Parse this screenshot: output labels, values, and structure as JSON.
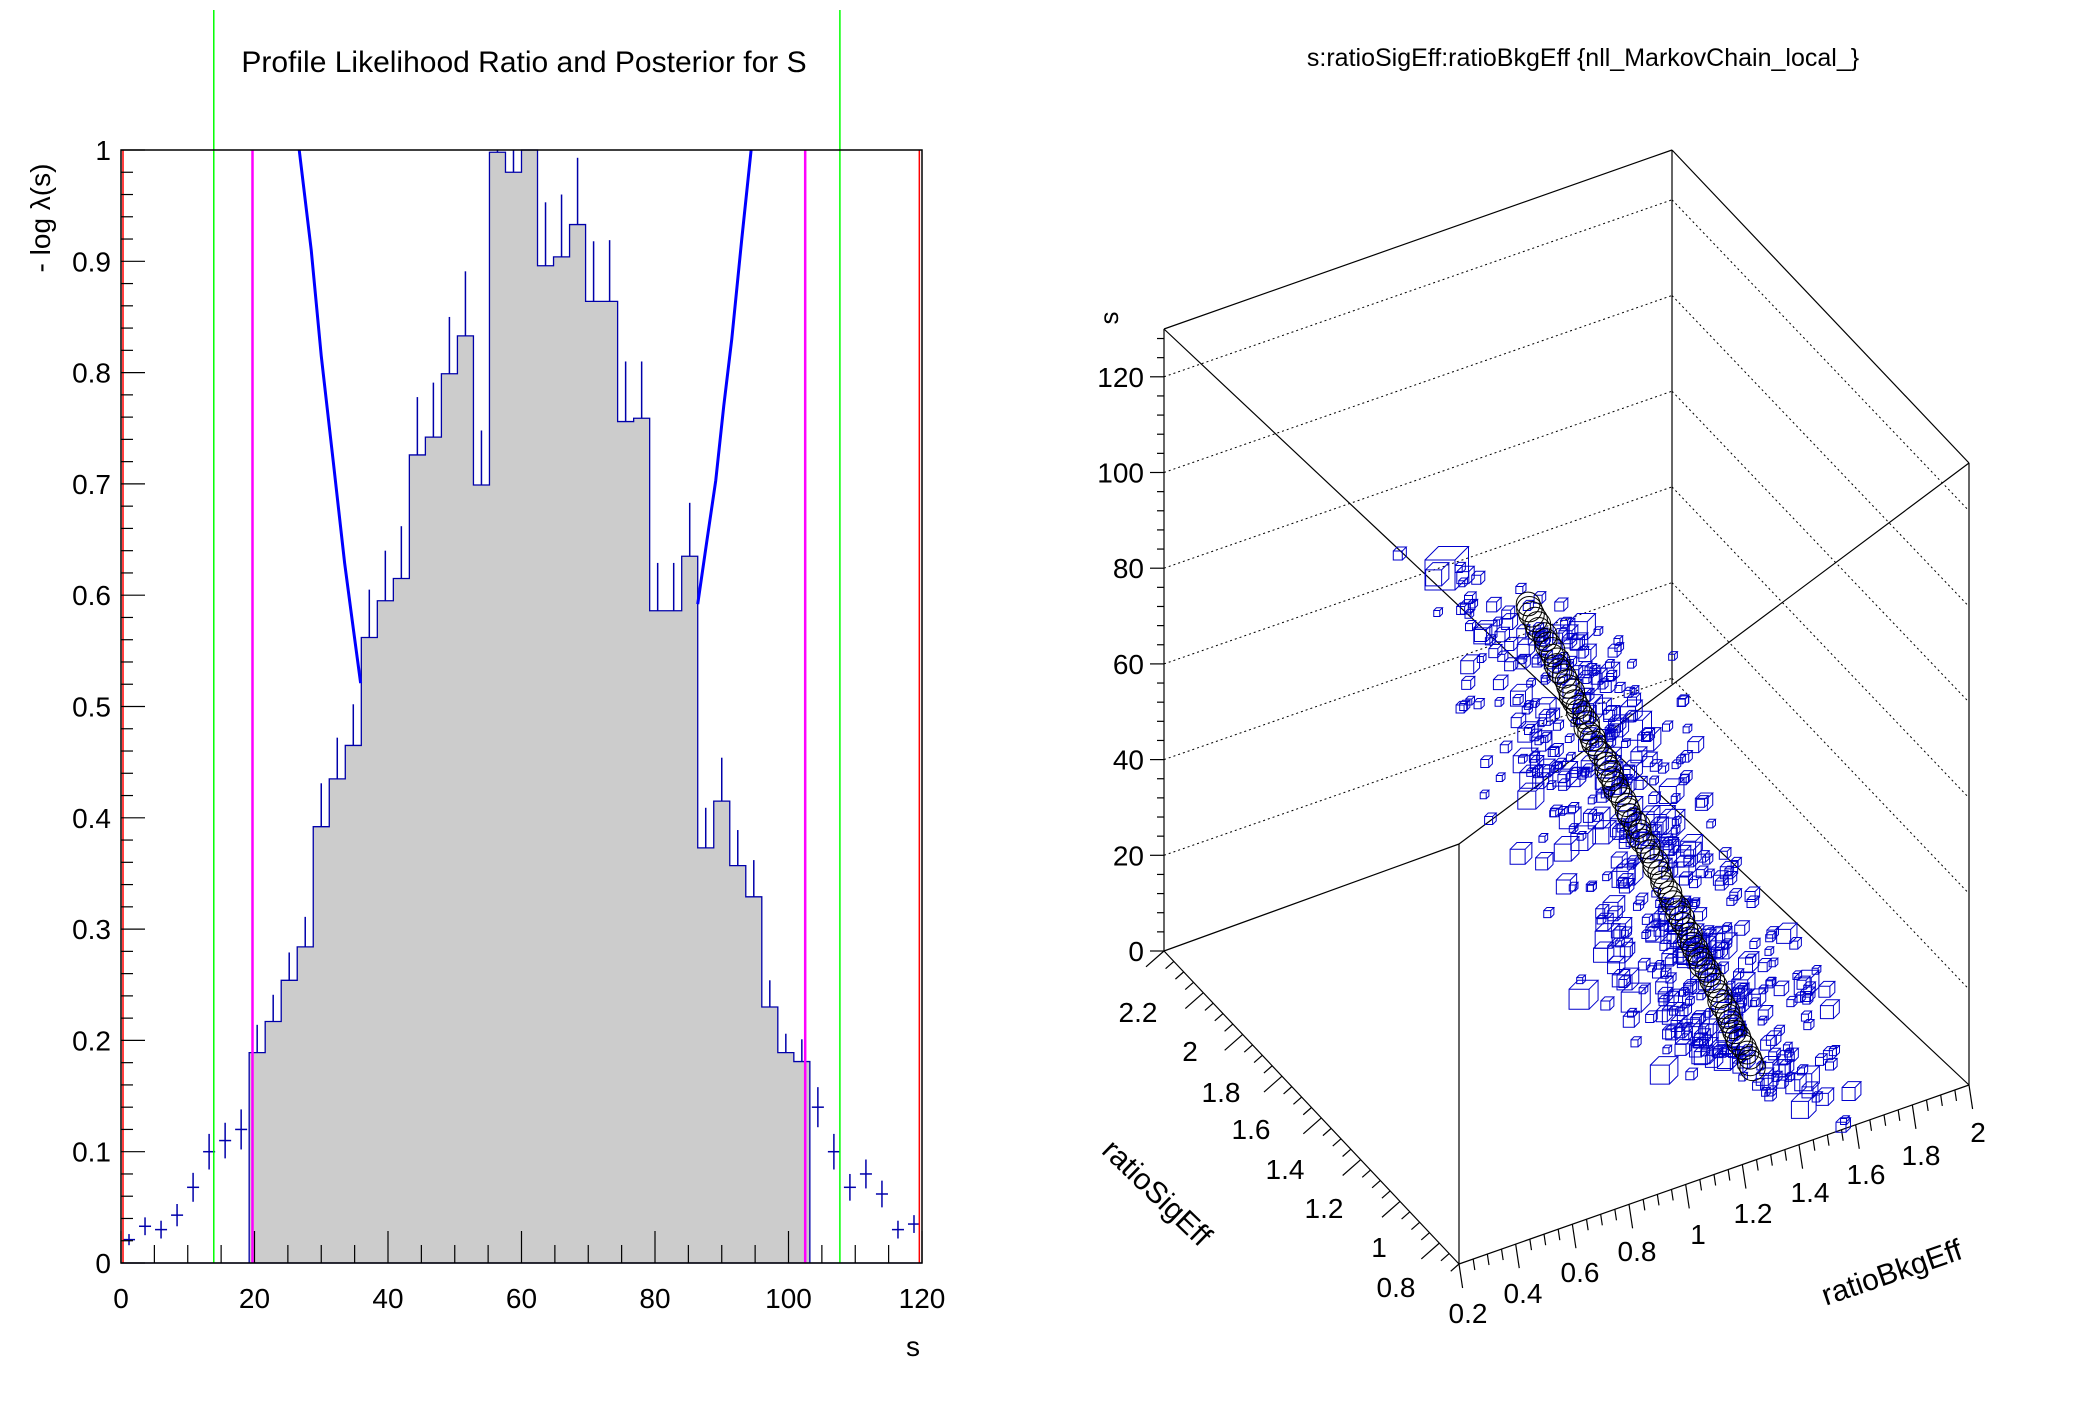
{
  "chart_data": [
    {
      "type": "bar",
      "title": "Profile Likelihood Ratio and Posterior for S",
      "xlabel": "s",
      "ylabel": "- log λ(s)",
      "xlim": [
        0,
        120
      ],
      "ylim": [
        0,
        1
      ],
      "xticks": [
        "0",
        "20",
        "40",
        "60",
        "80",
        "100",
        "120"
      ],
      "yticks": [
        "0",
        "0.1",
        "0.2",
        "0.3",
        "0.4",
        "0.5",
        "0.6",
        "0.7",
        "0.8",
        "0.9",
        "1"
      ],
      "bin_width": 2.4,
      "histogram": {
        "values": [
          0.021,
          0.033,
          0.03,
          0.043,
          0.068,
          0.1,
          0.11,
          0.12,
          0.189,
          0.217,
          0.254,
          0.284,
          0.392,
          0.435,
          0.465,
          0.562,
          0.595,
          0.615,
          0.726,
          0.742,
          0.799,
          0.833,
          0.699,
          0.998,
          0.98,
          1.0,
          0.896,
          0.904,
          0.933,
          0.864,
          0.864,
          0.756,
          0.759,
          0.586,
          0.586,
          0.635,
          0.373,
          0.415,
          0.357,
          0.329,
          0.23,
          0.189,
          0.181,
          0.14,
          0.1,
          0.068,
          0.08,
          0.062,
          0.03,
          0.035
        ],
        "errors": [
          0.005,
          0.008,
          0.008,
          0.01,
          0.013,
          0.016,
          0.016,
          0.018,
          0.025,
          0.024,
          0.025,
          0.027,
          0.039,
          0.037,
          0.037,
          0.043,
          0.045,
          0.047,
          0.052,
          0.049,
          0.051,
          0.058,
          0.049,
          0.06,
          0.06,
          0.06,
          0.057,
          0.056,
          0.06,
          0.054,
          0.055,
          0.054,
          0.051,
          0.043,
          0.043,
          0.048,
          0.036,
          0.039,
          0.032,
          0.033,
          0.024,
          0.017,
          0.02,
          0.018,
          0.016,
          0.012,
          0.013,
          0.012,
          0.008,
          0.008
        ],
        "filled_range": [
          19.2,
          103.2
        ],
        "fill_color": "#cccccc",
        "line_color": "#0000aa"
      },
      "profile_likelihood_curve": {
        "color": "#0000ff",
        "left": [
          [
            26.7,
            1.0
          ],
          [
            28.5,
            0.91
          ],
          [
            30.0,
            0.815
          ],
          [
            31.8,
            0.72
          ],
          [
            33.5,
            0.629
          ],
          [
            34.8,
            0.57
          ],
          [
            35.9,
            0.521
          ]
        ],
        "right": [
          [
            86.4,
            0.592
          ],
          [
            87.8,
            0.65
          ],
          [
            89.1,
            0.703
          ],
          [
            90.3,
            0.77
          ],
          [
            91.5,
            0.83
          ],
          [
            93.0,
            0.92
          ],
          [
            94.4,
            1.0
          ]
        ]
      },
      "vertical_lines": [
        {
          "x": 0.3,
          "color": "#ff0000"
        },
        {
          "x": 13.9,
          "color": "#00ff00"
        },
        {
          "x": 19.7,
          "color": "#ff00ff"
        },
        {
          "x": 102.5,
          "color": "#ff00ff"
        },
        {
          "x": 107.7,
          "color": "#00ff00"
        },
        {
          "x": 119.6,
          "color": "#ff0000"
        }
      ]
    },
    {
      "type": "scatter",
      "title": "s:ratioSigEff:ratioBkgEff {nll_MarkovChain_local_}",
      "zlabel": "s",
      "ylabel": "ratioSigEff",
      "xlabel": "ratioBkgEff",
      "zticks": [
        "0",
        "20",
        "40",
        "60",
        "80",
        "100",
        "120"
      ],
      "yticks": [
        "2.2",
        "2",
        "1.8",
        "1.6",
        "1.4",
        "1.2",
        "1",
        "0.8"
      ],
      "xticks": [
        "0.2",
        "0.4",
        "0.6",
        "0.8",
        "1",
        "1.2",
        "1.4",
        "1.6",
        "1.8",
        "2"
      ],
      "zlim": [
        0,
        130
      ],
      "marker_color": "#0000cc",
      "circle_color": "#000000",
      "grid": true
    }
  ]
}
